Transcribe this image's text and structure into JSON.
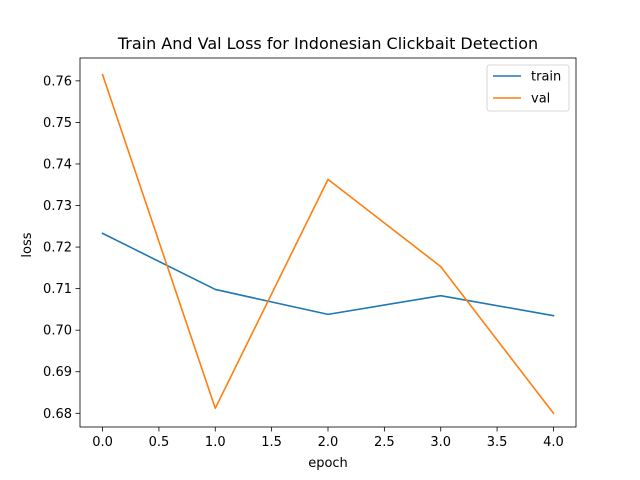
{
  "chart_data": {
    "type": "line",
    "title": "Train And Val Loss for Indonesian Clickbait Detection",
    "xlabel": "epoch",
    "ylabel": "loss",
    "x": [
      0,
      1,
      2,
      3,
      4
    ],
    "xlim": [
      -0.2,
      4.2
    ],
    "ylim": [
      0.6767,
      0.7655
    ],
    "x_ticks": [
      0.0,
      0.5,
      1.0,
      1.5,
      2.0,
      2.5,
      3.0,
      3.5,
      4.0
    ],
    "x_tick_labels": [
      "0.0",
      "0.5",
      "1.0",
      "1.5",
      "2.0",
      "2.5",
      "3.0",
      "3.5",
      "4.0"
    ],
    "y_ticks": [
      0.68,
      0.69,
      0.7,
      0.71,
      0.72,
      0.73,
      0.74,
      0.75,
      0.76
    ],
    "y_tick_labels": [
      "0.68",
      "0.69",
      "0.70",
      "0.71",
      "0.72",
      "0.73",
      "0.74",
      "0.75",
      "0.76"
    ],
    "series": [
      {
        "name": "train",
        "color": "#1f77b4",
        "values": [
          0.7233,
          0.7098,
          0.7038,
          0.7083,
          0.7035
        ]
      },
      {
        "name": "val",
        "color": "#ff7f0e",
        "values": [
          0.7615,
          0.6812,
          0.7363,
          0.7153,
          0.68
        ]
      }
    ],
    "grid": false,
    "legend_position": "top-right"
  }
}
